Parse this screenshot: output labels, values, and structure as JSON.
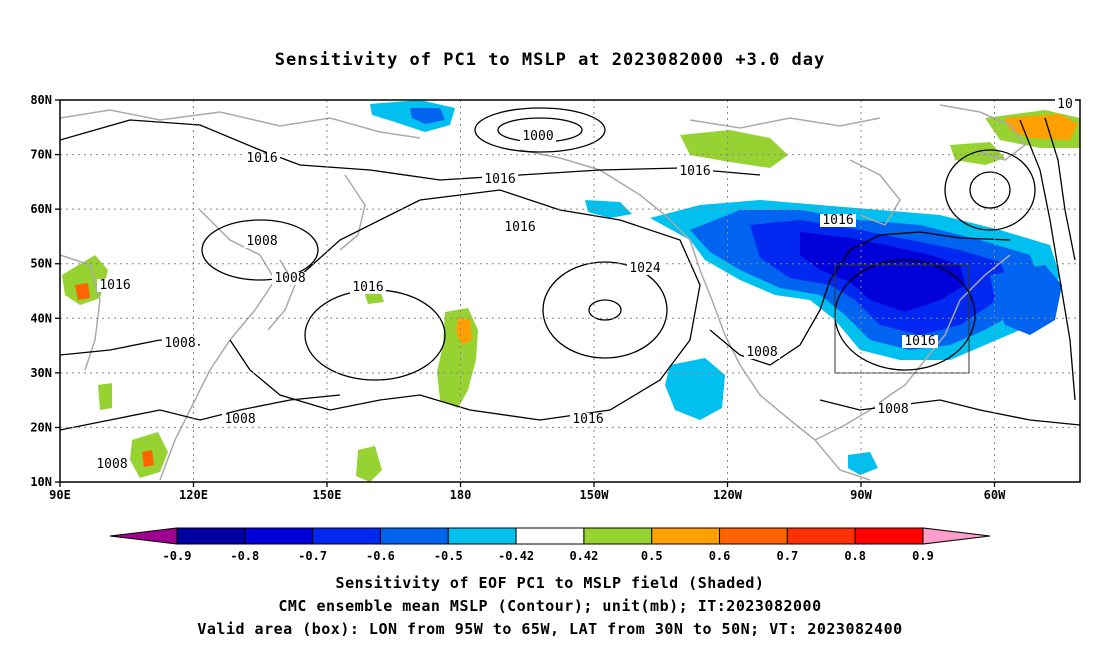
{
  "title": "Sensitivity of PC1 to MSLP at 2023082000 +3.0 day",
  "axes": {
    "lat_labels": [
      "80N",
      "70N",
      "60N",
      "50N",
      "40N",
      "30N",
      "20N",
      "10N"
    ],
    "lon_labels": [
      "90E",
      "120E",
      "150E",
      "180",
      "150W",
      "120W",
      "90W",
      "60W"
    ]
  },
  "contour_labels": [
    "10",
    "1000",
    "1016",
    "1016",
    "1016",
    "1016",
    "1016",
    "1024",
    "1008",
    "1008",
    "1016",
    "1016",
    "1008",
    "1008",
    "1008",
    "1016",
    "1008",
    "1016",
    "1008"
  ],
  "colorbar": {
    "labels": [
      "-0.9",
      "-0.8",
      "-0.7",
      "-0.6",
      "-0.5",
      "-0.42",
      "0.42",
      "0.5",
      "0.6",
      "0.7",
      "0.8",
      "0.9"
    ],
    "colors": [
      "#a00090",
      "#0000a0",
      "#0000d8",
      "#0028f0",
      "#0064f0",
      "#00c0f0",
      "#ffffff",
      "#96d232",
      "#ffa000",
      "#ff6400",
      "#ff3200",
      "#ff0000",
      "#ff9ec8"
    ]
  },
  "captions": {
    "line1": "Sensitivity of EOF PC1 to MSLP field (Shaded)",
    "line2": "CMC ensemble mean MSLP (Contour); unit(mb); IT:2023082000",
    "line3": "Valid area (box): LON from 95W to 65W, LAT from 30N to 50N; VT: 2023082400"
  },
  "valid_area": {
    "lon_range": "95W to 65W",
    "lat_range": "30N to 50N"
  }
}
